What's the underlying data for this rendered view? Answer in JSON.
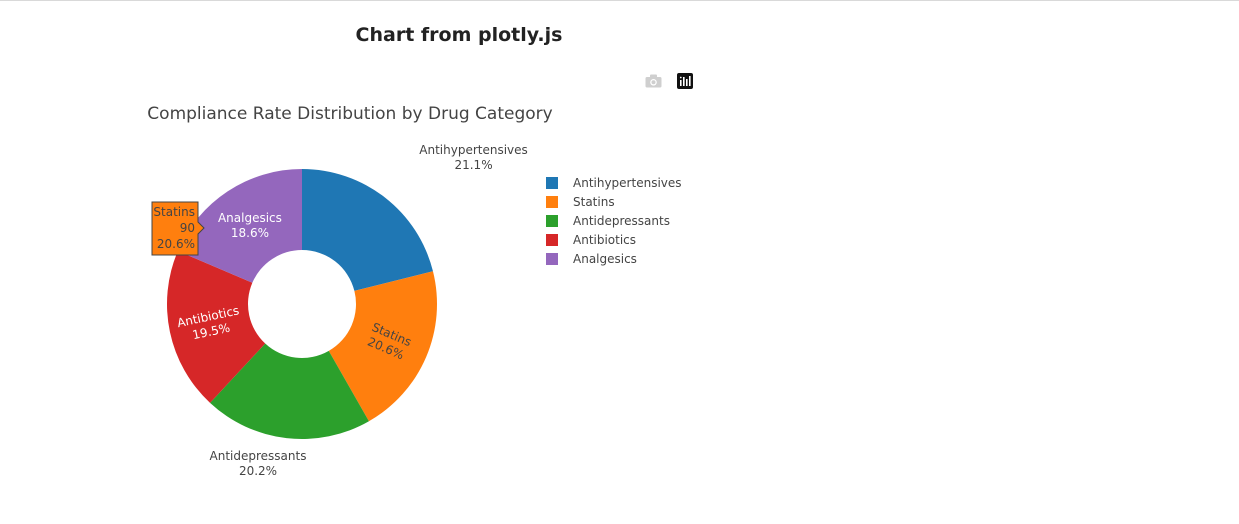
{
  "page": {
    "title": "Chart from plotly.js"
  },
  "modebar": {
    "camera_icon": "camera-icon",
    "plotly_logo_icon": "plotly-logo-icon"
  },
  "colors": {
    "Antihypertensives": "#1f77b4",
    "Statins": "#ff7f0e",
    "Antidepressants": "#2ca02c",
    "Antibiotics": "#d62728",
    "Analgesics": "#9467bd"
  },
  "chart_data": {
    "type": "pie",
    "title": "Compliance Rate Distribution by Drug Category",
    "hole": 0.4,
    "labels": [
      "Antihypertensives",
      "Statins",
      "Antidepressants",
      "Antibiotics",
      "Analgesics"
    ],
    "values": [
      92,
      90,
      88,
      85,
      81
    ],
    "percent_labels": [
      "21.1%",
      "20.6%",
      "20.2%",
      "19.5%",
      "18.6%"
    ],
    "legend": [
      "Antihypertensives",
      "Statins",
      "Antidepressants",
      "Antibiotics",
      "Analgesics"
    ],
    "legend_position": "right",
    "hover": {
      "label": "Statins",
      "value": "90",
      "percent": "20.6%"
    }
  }
}
